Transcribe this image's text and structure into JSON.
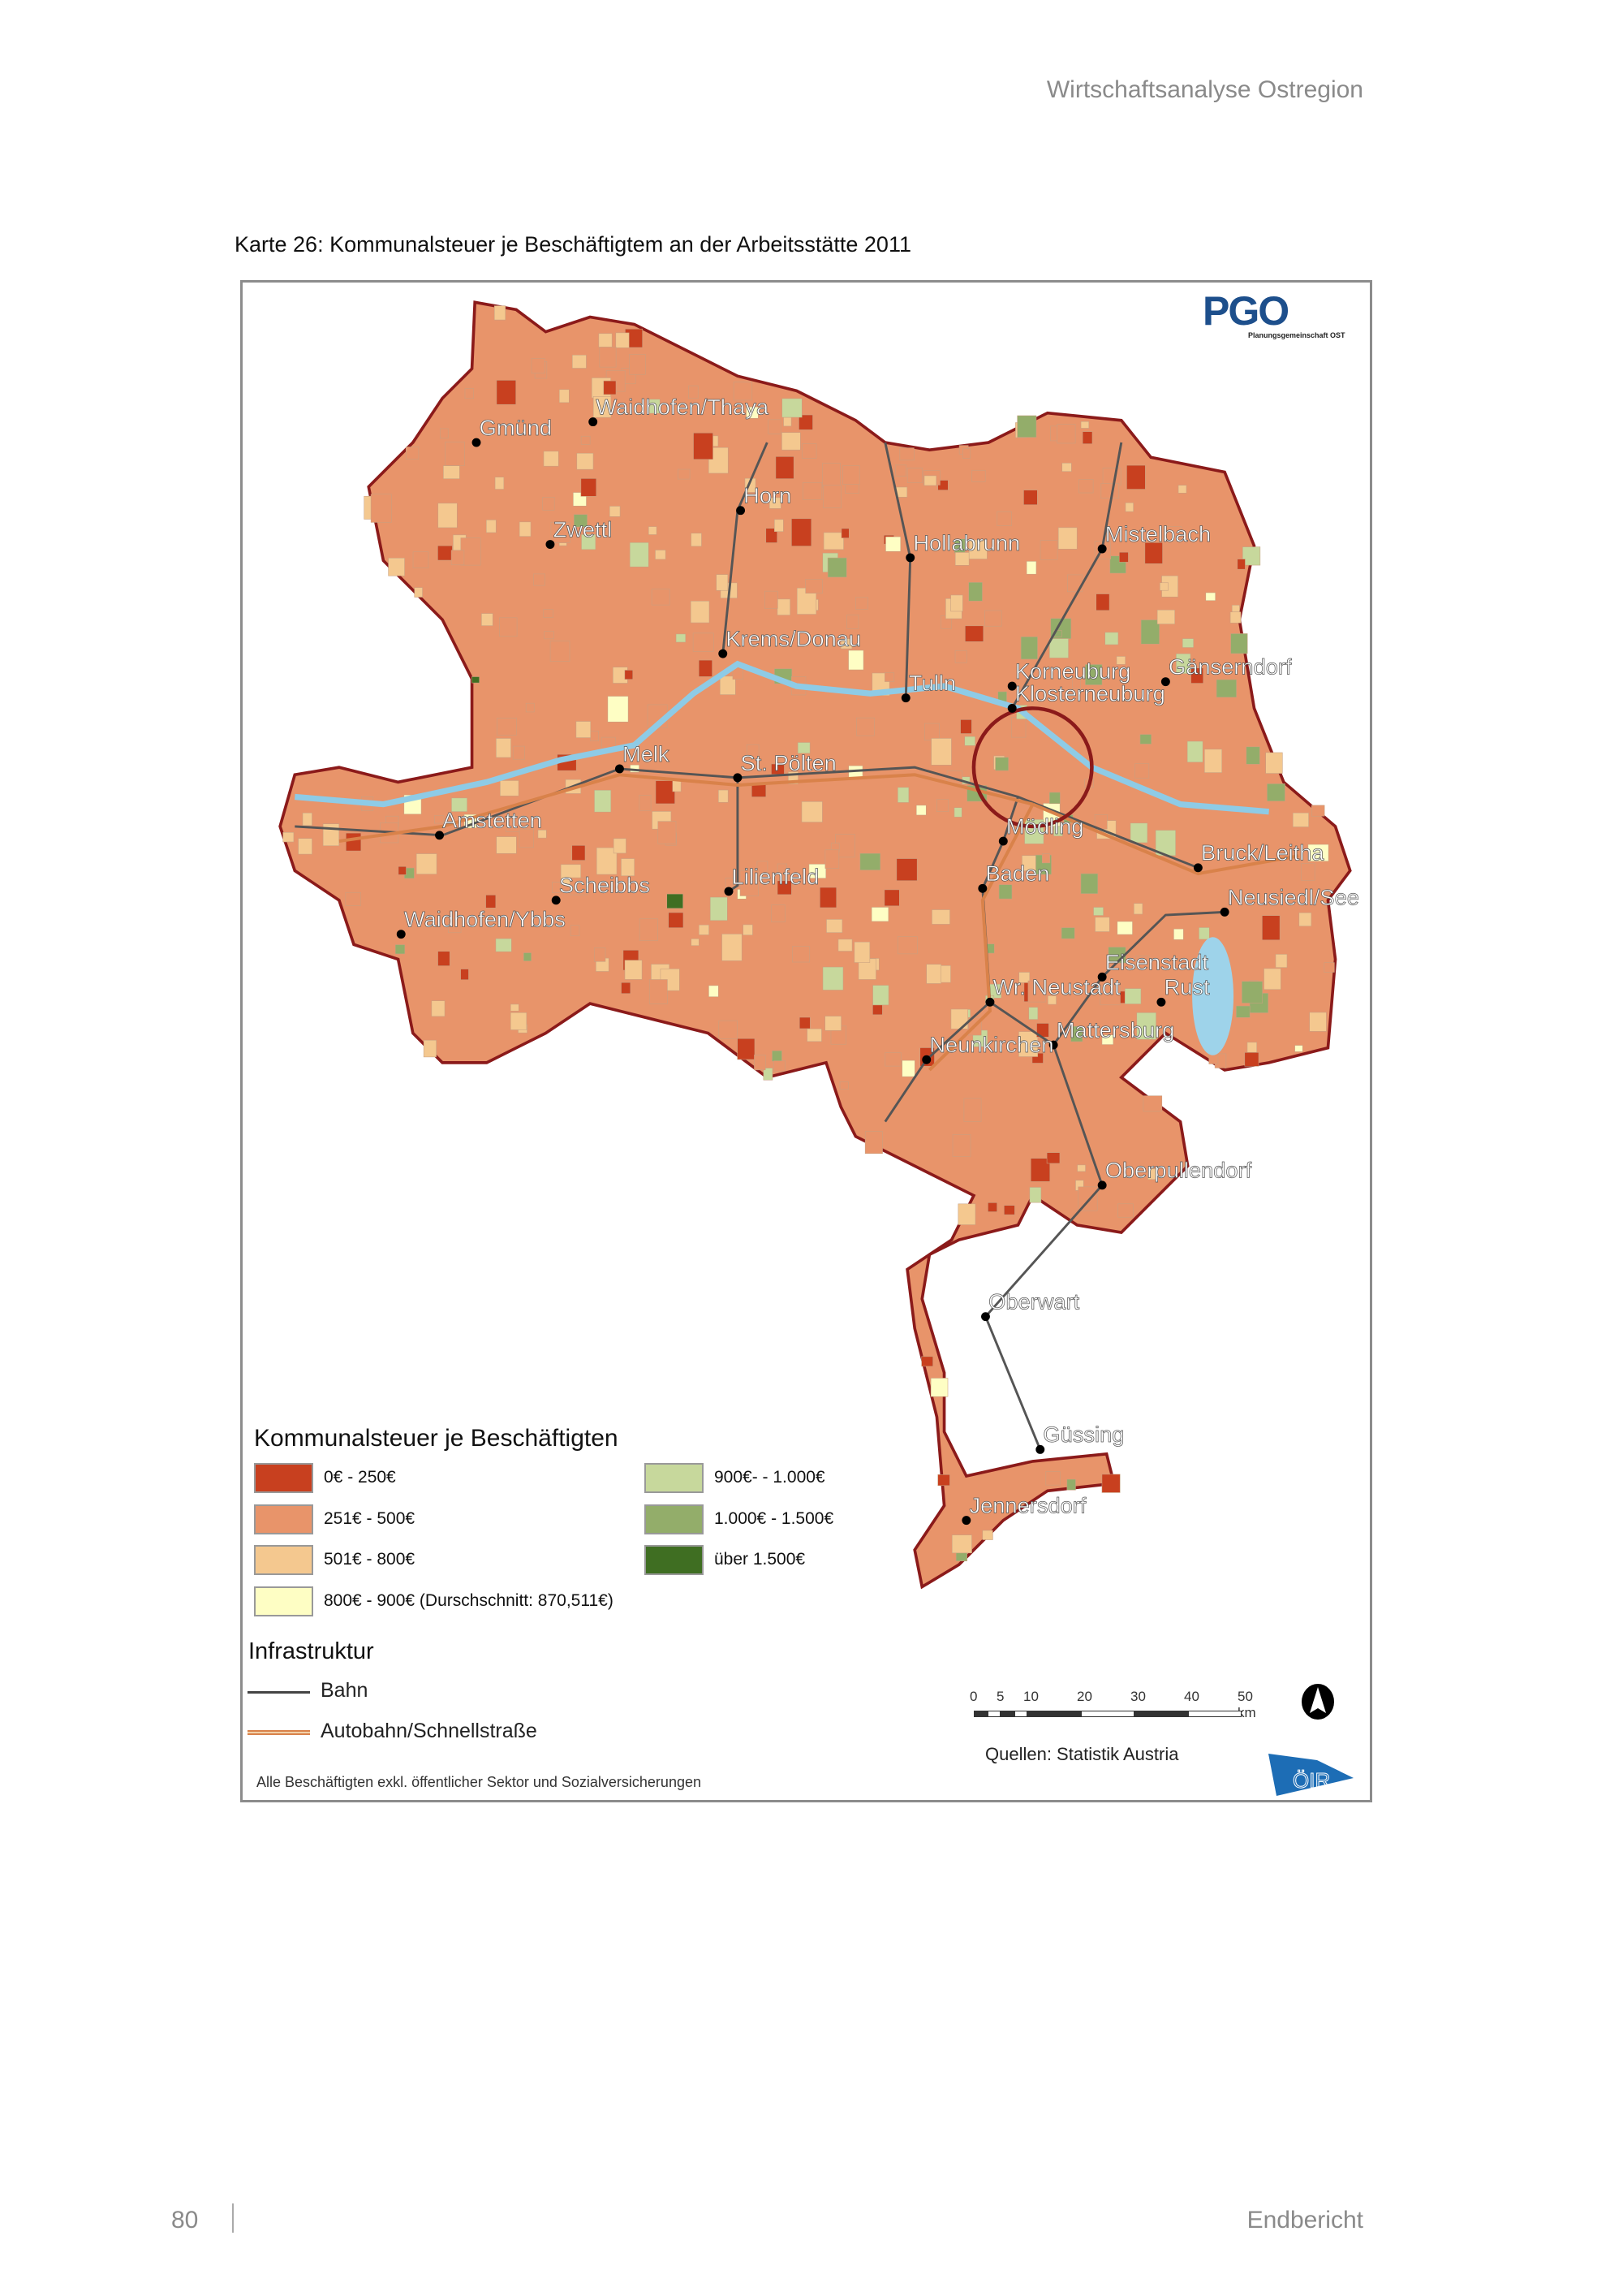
{
  "header": {
    "running_title": "Wirtschaftsanalyse Ostregion"
  },
  "figure": {
    "caption": "Karte 26: Kommunalsteuer je Beschäftigtem an der Arbeitsstätte 2011"
  },
  "logos": {
    "pgo_text": "PGO",
    "pgo_subtitle": "Planungsgemeinschaft OST",
    "oir_text": "ÖIR"
  },
  "legend": {
    "title": "Kommunalsteuer je Beschäftigten",
    "classes": [
      {
        "label": "0€ - 250€",
        "color": "#c8401f"
      },
      {
        "label": "251€ - 500€",
        "color": "#e8946a"
      },
      {
        "label": "501€ - 800€",
        "color": "#f4c88f"
      },
      {
        "label": "800€ - 900€ (Durschschnitt: 870,511€)",
        "color": "#fefec4"
      },
      {
        "label": "900€- - 1.000€",
        "color": "#c7d89c"
      },
      {
        "label": "1.000€ - 1.500€",
        "color": "#93ad6a"
      },
      {
        "label": "über 1.500€",
        "color": "#3f6e22"
      }
    ],
    "infra_title": "Infrastruktur",
    "infra": [
      {
        "label": "Bahn",
        "color": "#444444"
      },
      {
        "label": "Autobahn/Schnellstraße",
        "color": "#d9824a"
      }
    ],
    "footnote": "Alle Beschäftigten exkl. öffentlicher Sektor und Sozialversicherungen"
  },
  "scale": {
    "ticks": [
      "0",
      "5",
      "10",
      "20",
      "30",
      "40",
      "50 km"
    ]
  },
  "source": "Quellen: Statistik Austria",
  "cities": [
    "Waidhofen/Thaya",
    "Gmünd",
    "Horn",
    "Zwettl",
    "Hollabrunn",
    "Mistelbach",
    "Krems/Donau",
    "Tulln",
    "Korneuburg",
    "Klosterneuburg",
    "Gänserndorf",
    "Melk",
    "St. Pölten",
    "Amstetten",
    "Mödling",
    "Bruck/Leitha",
    "Scheibbs",
    "Lilienfeld",
    "Baden",
    "Neusiedl/See",
    "Waidhofen/Ybbs",
    "Eisenstadt",
    "Wr. Neustadt",
    "Rust",
    "Mattersburg",
    "Neunkirchen",
    "Oberpullendorf",
    "Oberwart",
    "Güssing",
    "Jennersdorf"
  ],
  "footer": {
    "page_number": "80",
    "report": "Endbericht"
  }
}
